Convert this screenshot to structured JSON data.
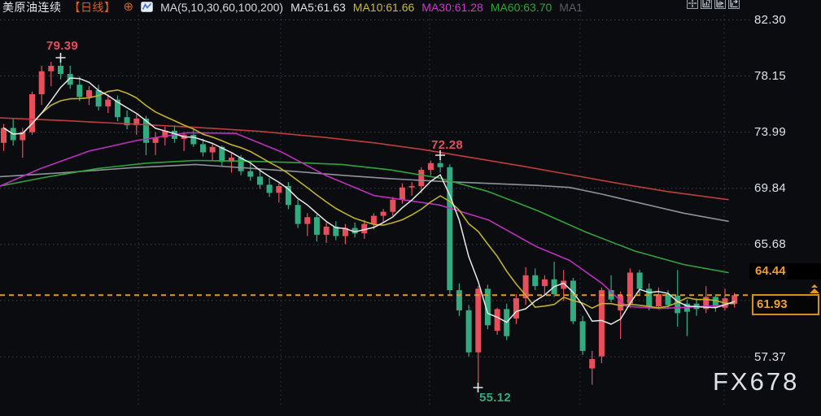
{
  "header": {
    "symbol": "美原油连续",
    "period": "【日线】",
    "plus_icon": "⊕",
    "ma_group": "MA(5,10,30,60,100,200)",
    "ma_values": [
      {
        "label": "MA5:61.63",
        "color": "#e2e2e2"
      },
      {
        "label": "MA10:61.66",
        "color": "#c9bb2e"
      },
      {
        "label": "MA30:61.28",
        "color": "#c73bc7"
      },
      {
        "label": "MA60:63.70",
        "color": "#2fa43c"
      },
      {
        "label": "MA1",
        "color": "#585d64"
      }
    ],
    "period_color": "#d4622a",
    "plus_color": "#d4622a"
  },
  "toolbar": {
    "icons": [
      "crosshair-icon",
      "panel-indicator-icon",
      "panel-play-icon",
      "panel-export-icon"
    ]
  },
  "axis": {
    "labels": [
      {
        "value": "82.30",
        "price": 82.3
      },
      {
        "value": "78.15",
        "price": 78.15
      },
      {
        "value": "73.99",
        "price": 73.99
      },
      {
        "value": "69.84",
        "price": 69.84
      },
      {
        "value": "65.68",
        "price": 65.68
      },
      {
        "value": "57.37",
        "price": 57.37
      }
    ],
    "settlement_tag": {
      "value": "64.44",
      "price": 64.44
    },
    "last_price_tag": {
      "value": "61.93",
      "price": 61.93
    }
  },
  "watermark": "FX678",
  "colors": {
    "background": "#0a0c0f",
    "grid": "#464b52",
    "candle_up": "#e84f5d",
    "candle_down": "#32ab81",
    "ma5": "#e8e8e8",
    "ma10": "#c0b128",
    "ma30": "#bd2fbd",
    "ma60": "#2fa43c",
    "ma100": "#8e9298",
    "ma200": "#c03d3d",
    "price_line": "#e8961e",
    "annotation_up": "#e34e5e",
    "annotation_down": "#31ab7c"
  },
  "chart_data": {
    "type": "candlestick",
    "title": "美原油连续 日线 (WTI crude oil continuous, daily)",
    "axis_map": {
      "p0": 82.3,
      "y0": 24.5,
      "ppu": 16.63,
      "x0": 4.5,
      "dx": 11.665,
      "body_w": 7
    },
    "plot_right": 922,
    "gridline_prices": [
      82.3,
      78.15,
      73.99,
      69.84,
      65.68,
      61.53,
      57.37
    ],
    "vgrid_x": [
      170,
      345,
      528,
      713,
      890
    ],
    "ylim": [
      54.5,
      82.9
    ],
    "current_price": 61.93,
    "settlement_price": 64.44,
    "high_annotation": 79.39,
    "mid_annotation": 72.28,
    "low_annotation": 55.12,
    "candles": [
      [
        73.2,
        74.6,
        72.6,
        74.3
      ],
      [
        74.3,
        75.0,
        73.0,
        73.4
      ],
      [
        73.4,
        74.3,
        72.1,
        74.0
      ],
      [
        74.0,
        77.0,
        73.8,
        76.8
      ],
      [
        76.8,
        78.9,
        76.0,
        78.5
      ],
      [
        78.5,
        79.2,
        77.4,
        78.9
      ],
      [
        78.9,
        79.39,
        77.9,
        78.3
      ],
      [
        78.3,
        78.9,
        77.2,
        77.5
      ],
      [
        77.5,
        78.1,
        76.3,
        76.6
      ],
      [
        76.6,
        77.4,
        76.0,
        77.1
      ],
      [
        77.1,
        77.5,
        75.6,
        75.9
      ],
      [
        75.9,
        76.8,
        75.4,
        76.4
      ],
      [
        76.4,
        76.7,
        74.8,
        75.1
      ],
      [
        75.1,
        75.6,
        74.2,
        74.5
      ],
      [
        74.5,
        75.3,
        73.8,
        75.0
      ],
      [
        75.0,
        75.2,
        72.3,
        73.2
      ],
      [
        73.2,
        74.0,
        72.3,
        73.6
      ],
      [
        73.6,
        74.4,
        73.0,
        74.1
      ],
      [
        74.1,
        74.5,
        73.2,
        73.5
      ],
      [
        73.5,
        74.0,
        72.6,
        73.8
      ],
      [
        73.8,
        74.2,
        72.9,
        73.1
      ],
      [
        73.1,
        73.5,
        72.2,
        72.5
      ],
      [
        72.5,
        73.2,
        71.9,
        72.9
      ],
      [
        72.9,
        73.0,
        71.5,
        71.8
      ],
      [
        71.8,
        72.4,
        71.0,
        72.1
      ],
      [
        72.1,
        72.3,
        70.8,
        71.1
      ],
      [
        71.1,
        71.8,
        70.4,
        70.7
      ],
      [
        70.7,
        71.3,
        69.8,
        70.1
      ],
      [
        70.1,
        70.6,
        69.2,
        69.5
      ],
      [
        69.5,
        70.2,
        68.8,
        70.0
      ],
      [
        70.0,
        70.3,
        68.3,
        68.6
      ],
      [
        68.6,
        69.0,
        66.9,
        67.2
      ],
      [
        67.2,
        68.0,
        66.3,
        67.7
      ],
      [
        67.7,
        67.9,
        65.9,
        66.4
      ],
      [
        66.4,
        67.3,
        65.8,
        67.0
      ],
      [
        67.0,
        67.4,
        66.0,
        66.3
      ],
      [
        66.3,
        67.2,
        65.7,
        66.9
      ],
      [
        66.9,
        67.3,
        66.2,
        66.5
      ],
      [
        66.5,
        67.5,
        66.1,
        67.2
      ],
      [
        67.2,
        68.0,
        66.8,
        67.8
      ],
      [
        67.8,
        68.3,
        67.3,
        68.1
      ],
      [
        68.1,
        69.2,
        67.8,
        69.0
      ],
      [
        69.0,
        70.2,
        68.7,
        69.9
      ],
      [
        69.9,
        70.3,
        69.3,
        70.0
      ],
      [
        70.0,
        71.4,
        69.5,
        71.2
      ],
      [
        71.2,
        71.9,
        70.8,
        71.7
      ],
      [
        71.7,
        72.28,
        71.0,
        71.4
      ],
      [
        71.4,
        71.6,
        62.0,
        62.3
      ],
      [
        62.3,
        62.8,
        60.4,
        60.8
      ],
      [
        60.8,
        61.2,
        57.4,
        57.7
      ],
      [
        57.7,
        62.6,
        55.12,
        62.4
      ],
      [
        62.4,
        62.7,
        59.4,
        59.7
      ],
      [
        59.3,
        61.0,
        59.0,
        60.9
      ],
      [
        60.9,
        61.3,
        58.6,
        58.9
      ],
      [
        60.2,
        62.0,
        59.8,
        61.7
      ],
      [
        61.7,
        64.0,
        61.2,
        63.4
      ],
      [
        63.4,
        63.9,
        62.3,
        62.6
      ],
      [
        62.6,
        63.4,
        61.9,
        63.1
      ],
      [
        63.1,
        64.4,
        61.8,
        62.0
      ],
      [
        62.4,
        63.8,
        61.5,
        63.0
      ],
      [
        63.0,
        63.2,
        59.8,
        60.0
      ],
      [
        60.0,
        60.4,
        57.5,
        57.8
      ],
      [
        56.5,
        57.8,
        55.3,
        57.2
      ],
      [
        57.4,
        62.5,
        56.9,
        62.3
      ],
      [
        62.3,
        63.4,
        61.4,
        61.6
      ],
      [
        60.8,
        62.2,
        58.7,
        61.9
      ],
      [
        61.3,
        63.9,
        61.0,
        63.6
      ],
      [
        63.6,
        63.8,
        62.0,
        62.4
      ],
      [
        62.4,
        62.8,
        60.8,
        61.1
      ],
      [
        61.1,
        62.5,
        60.9,
        62.0
      ],
      [
        62.0,
        62.3,
        60.9,
        61.2
      ],
      [
        61.9,
        63.8,
        59.6,
        60.6
      ],
      [
        61.3,
        61.6,
        58.9,
        60.7
      ],
      [
        61.3,
        61.7,
        60.4,
        60.9
      ],
      [
        60.9,
        62.6,
        60.6,
        61.8
      ],
      [
        61.8,
        62.0,
        60.7,
        61.0
      ],
      [
        61.0,
        62.4,
        60.8,
        61.7
      ],
      [
        61.3,
        62.1,
        61.0,
        61.93
      ]
    ],
    "ma_overlays": [
      {
        "name": "MA200",
        "color": "#c03d3d",
        "points": [
          [
            0,
            75.05
          ],
          [
            80,
            74.85
          ],
          [
            160,
            74.6
          ],
          [
            240,
            74.35
          ],
          [
            320,
            74.05
          ],
          [
            400,
            73.6
          ],
          [
            460,
            73.2
          ],
          [
            520,
            72.7
          ],
          [
            580,
            72.1
          ],
          [
            640,
            71.5
          ],
          [
            700,
            70.85
          ],
          [
            760,
            70.2
          ],
          [
            820,
            69.6
          ],
          [
            895,
            69.0
          ]
        ]
      },
      {
        "name": "MA100",
        "color": "#8e9298",
        "points": [
          [
            0,
            70.7
          ],
          [
            80,
            71.0
          ],
          [
            160,
            71.35
          ],
          [
            240,
            71.6
          ],
          [
            300,
            71.35
          ],
          [
            360,
            71.1
          ],
          [
            420,
            70.8
          ],
          [
            480,
            70.55
          ],
          [
            540,
            70.35
          ],
          [
            600,
            70.2
          ],
          [
            660,
            70.05
          ],
          [
            700,
            69.9
          ],
          [
            740,
            69.4
          ],
          [
            790,
            68.7
          ],
          [
            840,
            68.0
          ],
          [
            895,
            67.4
          ]
        ]
      },
      {
        "name": "MA60",
        "color": "#2fa43c",
        "points": [
          [
            0,
            70.0
          ],
          [
            60,
            70.7
          ],
          [
            120,
            71.3
          ],
          [
            180,
            71.7
          ],
          [
            240,
            71.9
          ],
          [
            300,
            71.85
          ],
          [
            360,
            71.75
          ],
          [
            420,
            71.6
          ],
          [
            480,
            71.2
          ],
          [
            540,
            70.6
          ],
          [
            600,
            69.6
          ],
          [
            660,
            68.2
          ],
          [
            720,
            66.6
          ],
          [
            780,
            65.2
          ],
          [
            840,
            64.2
          ],
          [
            895,
            63.6
          ]
        ]
      },
      {
        "name": "MA30",
        "color": "#bd2fbd",
        "points": [
          [
            0,
            70.0
          ],
          [
            50,
            71.3
          ],
          [
            110,
            72.6
          ],
          [
            170,
            73.4
          ],
          [
            230,
            73.95
          ],
          [
            290,
            73.9
          ],
          [
            345,
            72.55
          ],
          [
            400,
            70.8
          ],
          [
            460,
            69.3
          ],
          [
            540,
            68.6
          ],
          [
            600,
            67.5
          ],
          [
            660,
            65.5
          ],
          [
            700,
            64.5
          ],
          [
            740,
            62.8
          ],
          [
            770,
            61.1
          ],
          [
            810,
            60.95
          ],
          [
            850,
            61.05
          ],
          [
            895,
            61.2
          ]
        ]
      }
    ],
    "annotations": [
      {
        "text": "79.39",
        "color": "#e34e5e",
        "anchor_x": 74.5,
        "anchor_y": 71,
        "text_x": 57,
        "text_y": 48
      },
      {
        "text": "72.28",
        "color": "#e34e5e",
        "anchor_x": 541,
        "anchor_y": 191,
        "text_x": 530,
        "text_y": 170
      },
      {
        "text": "55.12",
        "color": "#31ab7c",
        "anchor_x": 587.5,
        "anchor_y": 477,
        "text_x": 589,
        "text_y": 481
      }
    ]
  }
}
